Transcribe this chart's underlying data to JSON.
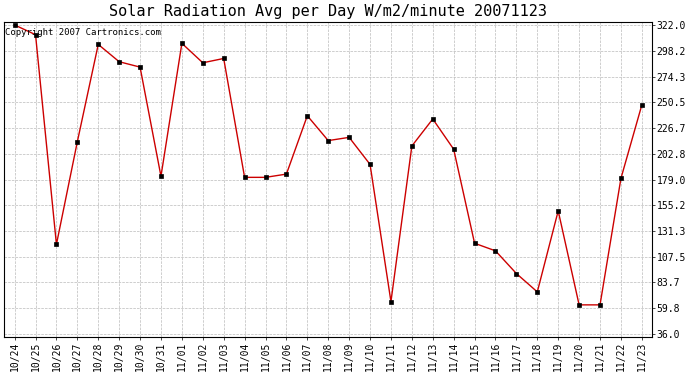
{
  "title": "Solar Radiation Avg per Day W/m2/minute 20071123",
  "copyright_text": "Copyright 2007 Cartronics.com",
  "x_labels": [
    "10/24",
    "10/25",
    "10/26",
    "10/27",
    "10/28",
    "10/29",
    "10/30",
    "10/31",
    "11/01",
    "11/02",
    "11/03",
    "11/04",
    "11/05",
    "11/06",
    "11/07",
    "11/08",
    "11/09",
    "11/10",
    "11/11",
    "11/12",
    "11/13",
    "11/14",
    "11/15",
    "11/16",
    "11/17",
    "11/18",
    "11/19",
    "11/20",
    "11/21",
    "11/22",
    "11/23"
  ],
  "y_values": [
    322.0,
    313.0,
    119.0,
    214.0,
    304.0,
    288.0,
    283.0,
    182.0,
    305.0,
    287.0,
    291.0,
    181.0,
    181.0,
    184.0,
    238.0,
    215.0,
    218.0,
    193.0,
    66.0,
    210.0,
    235.0,
    207.0,
    120.0,
    113.0,
    92.0,
    75.0,
    150.0,
    63.0,
    63.0,
    180.0,
    248.0
  ],
  "line_color": "#cc0000",
  "marker_color": "#000000",
  "bg_color": "#ffffff",
  "grid_color": "#bbbbbb",
  "yticks": [
    36.0,
    59.8,
    83.7,
    107.5,
    131.3,
    155.2,
    179.0,
    202.8,
    226.7,
    250.5,
    274.3,
    298.2,
    322.0
  ],
  "ylim_min": 36.0,
  "ylim_max": 322.0,
  "title_fontsize": 11,
  "tick_fontsize": 7,
  "copyright_fontsize": 6.5
}
